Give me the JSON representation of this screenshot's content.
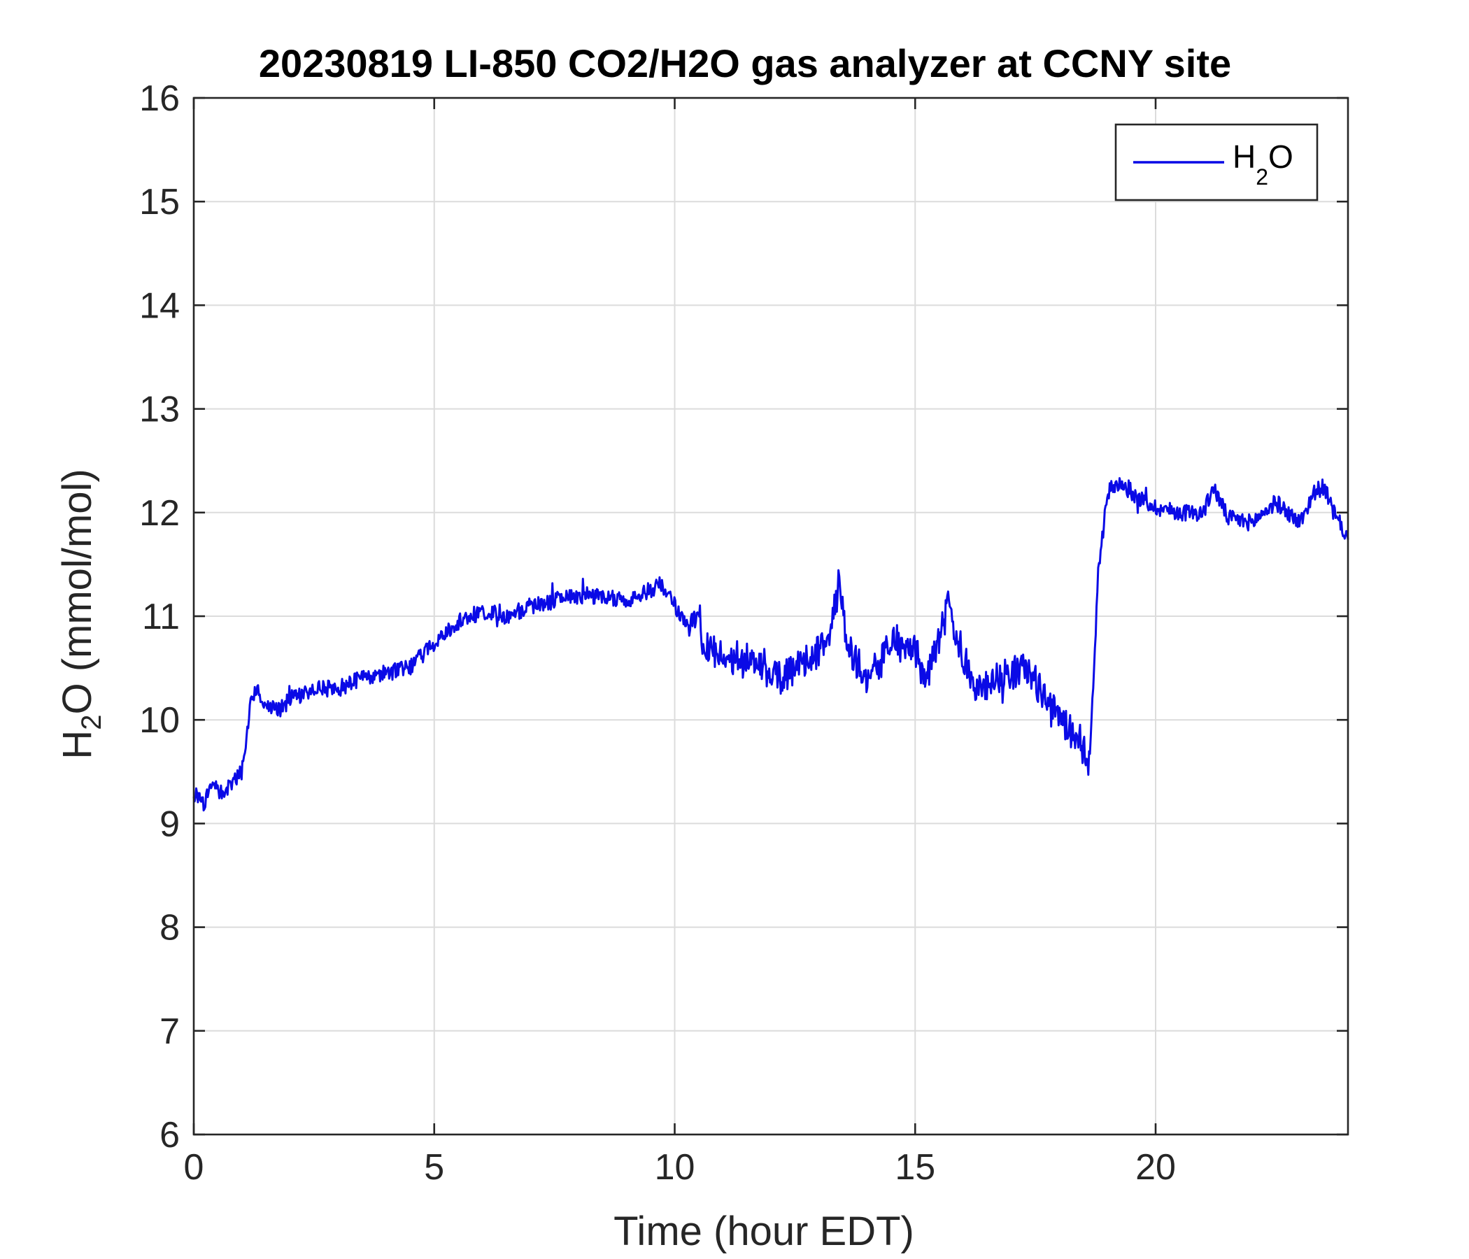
{
  "chart_data": {
    "type": "line",
    "title": "20230819 LI-850 CO2/H2O gas analyzer at CCNY site",
    "xlabel": "Time (hour EDT)",
    "ylabel": {
      "base": "H",
      "sub": "2",
      "rest": "O (mmol/mol)"
    },
    "xlim": [
      0,
      24
    ],
    "ylim": [
      6,
      16
    ],
    "xticks": [
      0,
      5,
      10,
      15,
      20
    ],
    "yticks": [
      6,
      7,
      8,
      9,
      10,
      11,
      12,
      13,
      14,
      15,
      16
    ],
    "grid": true,
    "legend": {
      "position": "top-right",
      "entries": [
        {
          "base": "H",
          "sub": "2",
          "rest": "O"
        }
      ]
    },
    "series": [
      {
        "name": "H2O",
        "color": "#0a0ae6",
        "x": [
          0,
          0.2,
          0.4,
          0.6,
          0.8,
          1.0,
          1.2,
          1.3,
          1.5,
          1.8,
          2.0,
          2.5,
          3.0,
          3.5,
          4.0,
          4.5,
          5.0,
          5.5,
          6.0,
          6.5,
          7.0,
          7.5,
          8.0,
          8.5,
          9.0,
          9.5,
          9.7,
          10.0,
          10.3,
          10.5,
          10.6,
          11.0,
          11.5,
          12.0,
          12.2,
          12.5,
          13.0,
          13.2,
          13.4,
          13.6,
          14.0,
          14.3,
          14.5,
          15.0,
          15.2,
          15.5,
          15.7,
          16.0,
          16.3,
          16.6,
          17.0,
          17.3,
          17.6,
          17.8,
          18.0,
          18.2,
          18.5,
          18.6,
          18.7,
          18.8,
          19.0,
          19.3,
          19.6,
          20.0,
          20.5,
          21.0,
          21.2,
          21.5,
          22.0,
          22.5,
          23.0,
          23.3,
          23.5,
          23.7,
          24.0
        ],
        "y": [
          9.3,
          9.2,
          9.35,
          9.3,
          9.4,
          9.5,
          10.2,
          10.3,
          10.15,
          10.1,
          10.2,
          10.3,
          10.3,
          10.4,
          10.45,
          10.5,
          10.75,
          10.95,
          11.05,
          11.0,
          11.1,
          11.15,
          11.2,
          11.2,
          11.15,
          11.25,
          11.3,
          11.1,
          10.9,
          11.1,
          10.7,
          10.6,
          10.6,
          10.5,
          10.4,
          10.5,
          10.65,
          10.8,
          11.35,
          10.7,
          10.4,
          10.55,
          10.8,
          10.7,
          10.35,
          10.8,
          11.1,
          10.6,
          10.25,
          10.4,
          10.45,
          10.5,
          10.3,
          10.1,
          10.05,
          9.9,
          9.8,
          9.6,
          10.2,
          11.4,
          12.2,
          12.3,
          12.15,
          12.05,
          12.0,
          12.0,
          12.25,
          11.95,
          11.9,
          12.1,
          11.9,
          12.2,
          12.25,
          12.0,
          11.75
        ]
      }
    ]
  }
}
